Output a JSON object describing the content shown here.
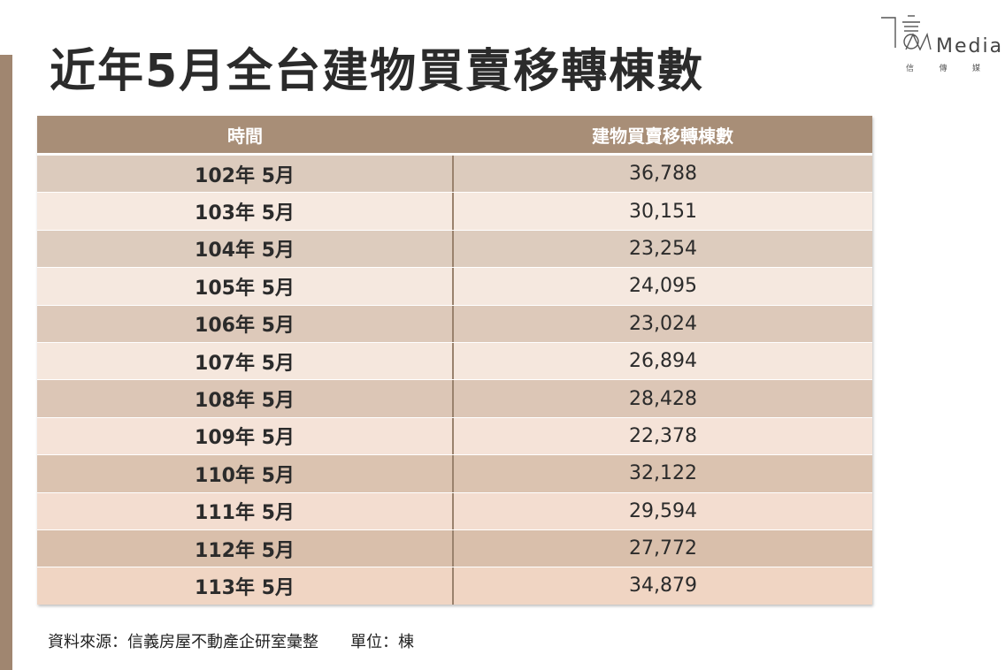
{
  "title": "近年5月全台建物買賣移轉棟數",
  "logo": {
    "text": "Media",
    "sub": [
      "信",
      "傳",
      "媒"
    ]
  },
  "chart_data": {
    "type": "table",
    "columns": [
      "時間",
      "建物買賣移轉棟數"
    ],
    "rows": [
      [
        "102年 5月",
        "36,788"
      ],
      [
        "103年 5月",
        "30,151"
      ],
      [
        "104年 5月",
        "23,254"
      ],
      [
        "105年 5月",
        "24,095"
      ],
      [
        "106年 5月",
        "23,024"
      ],
      [
        "107年 5月",
        "26,894"
      ],
      [
        "108年 5月",
        "28,428"
      ],
      [
        "109年 5月",
        "22,378"
      ],
      [
        "110年 5月",
        "32,122"
      ],
      [
        "111年 5月",
        "29,594"
      ],
      [
        "112年 5月",
        "27,772"
      ],
      [
        "113年 5月",
        "34,879"
      ]
    ],
    "row_colors": [
      "#dccbbd",
      "#f6e9e0",
      "#ddccbe",
      "#f5e8df",
      "#ddc9ba",
      "#f5e7dd",
      "#dcc6b6",
      "#f5e3d8",
      "#dbc3b0",
      "#f3ddd0",
      "#d9bfab",
      "#f0d5c3"
    ]
  },
  "footer": {
    "source": "資料來源：信義房屋不動產企研室彙整",
    "unit": "單位：棟"
  },
  "colors": {
    "accent": "#a08670",
    "header": "#a88e77"
  }
}
